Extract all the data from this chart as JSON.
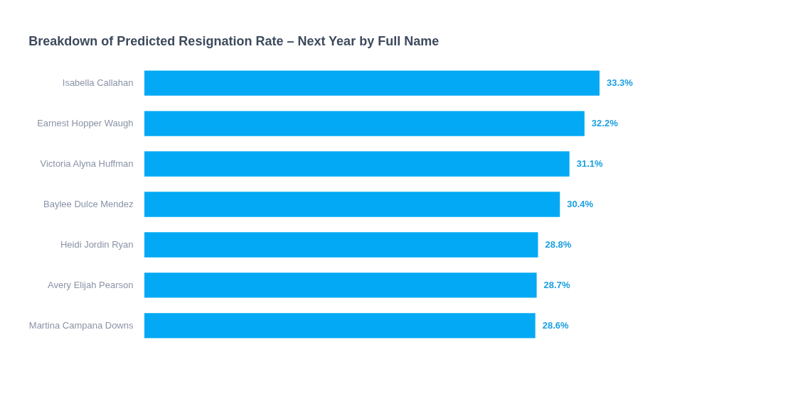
{
  "chart_data": {
    "type": "bar",
    "orientation": "horizontal",
    "title": "Breakdown of Predicted Resignation Rate – Next Year by Full Name",
    "categories": [
      "Isabella Callahan",
      "Earnest Hopper Waugh",
      "Victoria Alyna Huffman",
      "Baylee Dulce Mendez",
      "Heidi Jordin Ryan",
      "Avery Elijah Pearson",
      "Martina Campana Downs"
    ],
    "values": [
      33.3,
      32.2,
      31.1,
      30.4,
      28.8,
      28.7,
      28.6
    ],
    "value_labels": [
      "33.3%",
      "32.2%",
      "31.1%",
      "30.4%",
      "28.8%",
      "28.7%",
      "28.6%"
    ],
    "color": "#03a9f4",
    "grid": false
  }
}
